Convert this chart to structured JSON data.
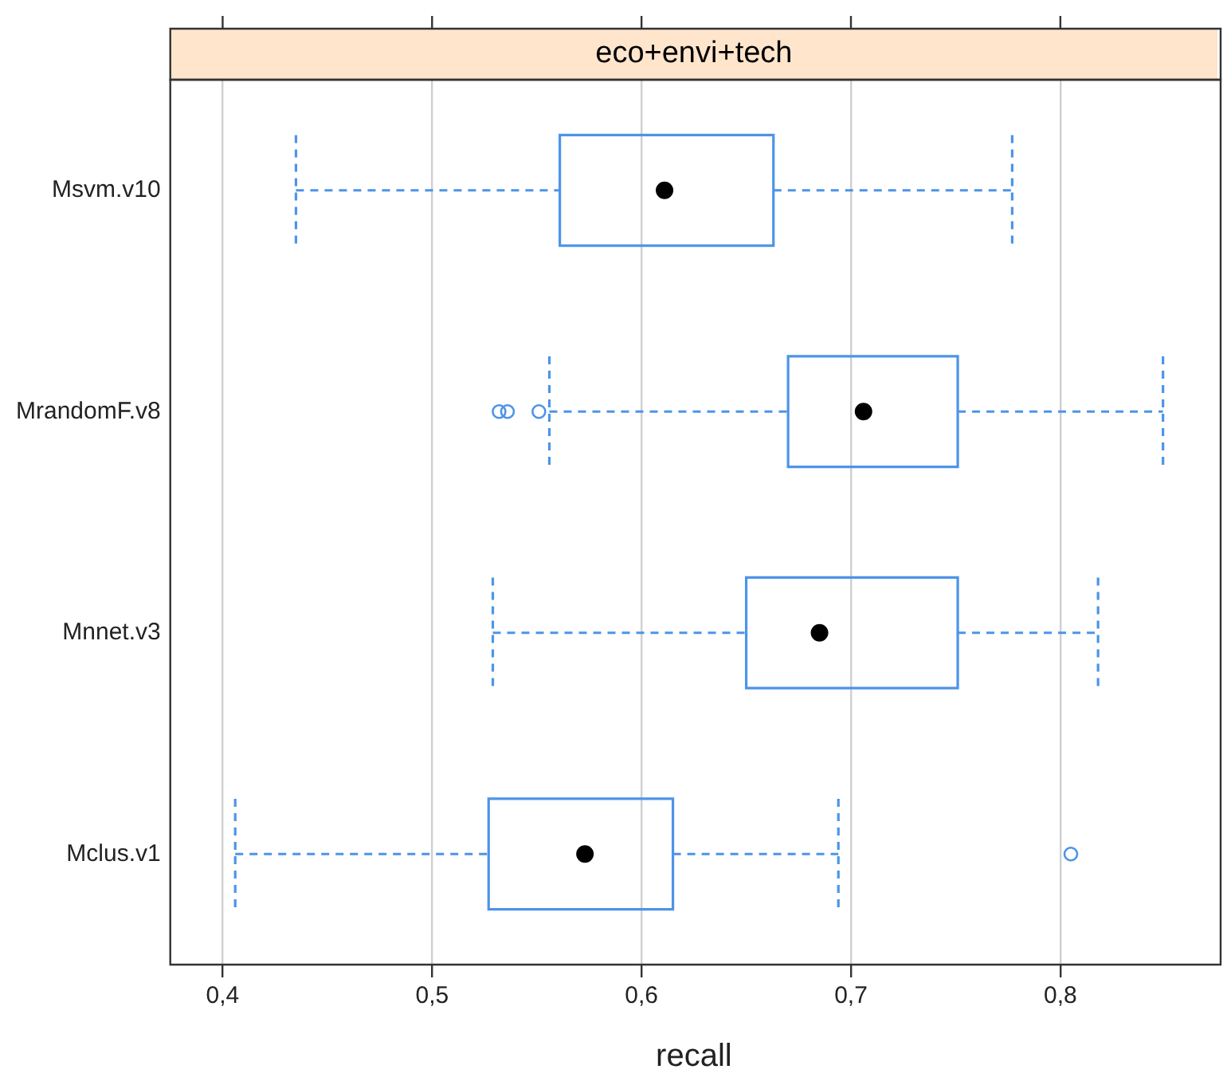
{
  "chart_data": {
    "type": "box",
    "title": "eco+envi+tech",
    "xlabel": "recall",
    "orientation": "horizontal",
    "grid": "x",
    "categories": [
      "Msvm.v10",
      "MrandomF.v8",
      "Mnnet.v3",
      "Mclus.v1"
    ],
    "xlim": [
      0.375,
      0.875
    ],
    "xticks": [
      {
        "value": 0.4,
        "label": "0,4"
      },
      {
        "value": 0.5,
        "label": "0,5"
      },
      {
        "value": 0.6,
        "label": "0,6"
      },
      {
        "value": 0.7,
        "label": "0,7"
      },
      {
        "value": 0.8,
        "label": "0,8"
      }
    ],
    "series": [
      {
        "color": "#4d94e8",
        "boxes": [
          {
            "low": 0.435,
            "q1": 0.561,
            "median": 0.611,
            "q3": 0.663,
            "high": 0.777
          },
          {
            "low": 0.556,
            "q1": 0.67,
            "median": 0.706,
            "q3": 0.751,
            "high": 0.849,
            "outliers": [
              0.532,
              0.536,
              0.551
            ]
          },
          {
            "low": 0.529,
            "q1": 0.65,
            "median": 0.685,
            "q3": 0.751,
            "high": 0.818
          },
          {
            "low": 0.406,
            "q1": 0.527,
            "median": 0.573,
            "q3": 0.615,
            "high": 0.694,
            "outliers": [
              0.805
            ]
          }
        ]
      }
    ]
  }
}
